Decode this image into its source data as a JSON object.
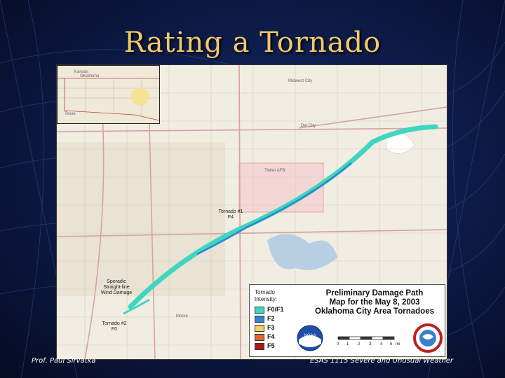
{
  "slide": {
    "title": "Rating a Tornado",
    "footer_left": "Prof. Paul Sirvatka",
    "footer_right": "ESAS 1115 Severe and Unusual Weather"
  },
  "inset_map": {
    "labels": [
      "Kansas",
      "Oklahoma",
      "Texas"
    ]
  },
  "map": {
    "annotations": {
      "tornado1": [
        "Tornado #1",
        "F4"
      ],
      "sporadic": [
        "Sporadic",
        "Straight-line",
        "Wind Damage"
      ],
      "tornado2": [
        "Tornado #2",
        "F0"
      ],
      "tinker": "Tinker AFB"
    },
    "towns": [
      "Midwest City",
      "Del City",
      "Moore"
    ],
    "colors": {
      "path_f0f1": "#3fd6c0",
      "path_f2": "#2f86d0",
      "map_bg": "#f1ede2",
      "title": "#f2c96a"
    }
  },
  "legend": {
    "heading": [
      "Tornado",
      "Intensity:"
    ],
    "title_lines": [
      "Preliminary Damage Path",
      "Map for the May 8, 2003",
      "Oklahoma City Area Tornadoes"
    ],
    "items": [
      {
        "label": "F0/F1",
        "color": "#3fd6c0"
      },
      {
        "label": "F2",
        "color": "#2f86d0"
      },
      {
        "label": "F3",
        "color": "#f0d060"
      },
      {
        "label": "F4",
        "color": "#e8602a"
      },
      {
        "label": "F5",
        "color": "#b01818"
      }
    ],
    "scale_labels": [
      "0",
      "1",
      "2",
      "3",
      "4",
      "5"
    ],
    "scale_unit": "mi",
    "logos": [
      "noaa-logo",
      "national-weather-service-logo"
    ]
  }
}
